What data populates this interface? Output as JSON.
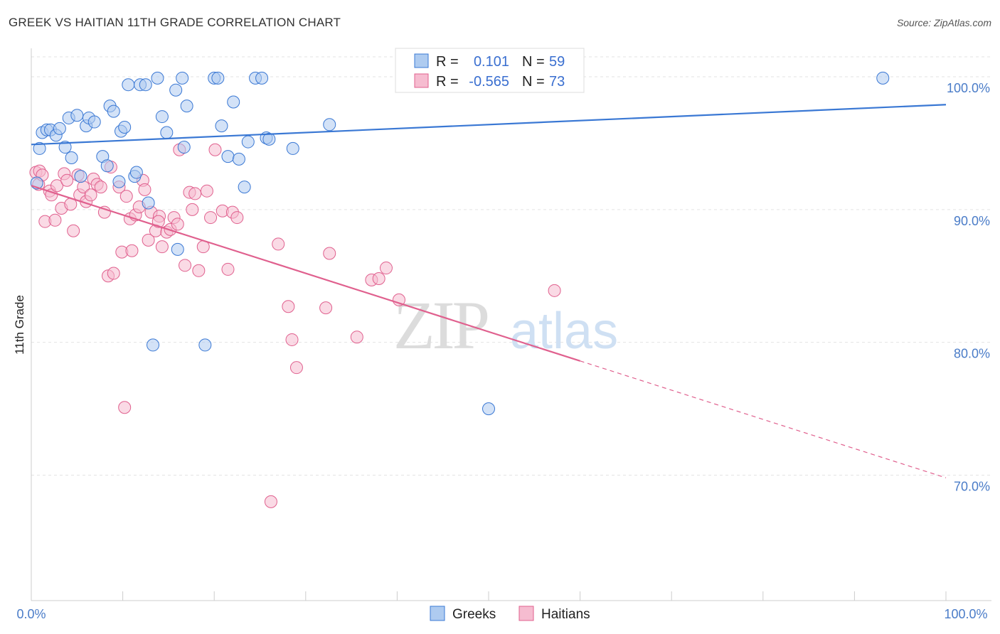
{
  "header": {
    "title": "GREEK VS HAITIAN 11TH GRADE CORRELATION CHART",
    "source": "Source: ZipAtlas.com"
  },
  "watermark": {
    "zip": "ZIP",
    "atlas": "atlas"
  },
  "colors": {
    "greek": "#3a78d4",
    "greek_fill": "#aecbf0",
    "haitian": "#e0608e",
    "haitian_fill": "#f6bcd0",
    "tick_label": "#4a7cc8"
  },
  "legend": {
    "r_label": "R =",
    "n_label": "N =",
    "greek_r": "0.101",
    "greek_n": "59",
    "haitian_r": "-0.565",
    "haitian_n": "73"
  },
  "bottom_legend": {
    "greeks": "Greeks",
    "haitians": "Haitians"
  },
  "chart_data": {
    "type": "scatter",
    "title": "GREEK VS HAITIAN 11TH GRADE CORRELATION CHART",
    "ylabel": "11th Grade",
    "xlabel": "",
    "xlim": [
      0,
      100
    ],
    "ylim": [
      60.5,
      101.5
    ],
    "x_tick_labels": [
      "0.0%",
      "100.0%"
    ],
    "y_ticks": [
      70,
      80,
      90,
      100
    ],
    "y_tick_labels": [
      "70.0%",
      "80.0%",
      "90.0%",
      "100.0%"
    ],
    "grid": true,
    "legend_position": "top-center",
    "series": [
      {
        "name": "Greeks",
        "color": "#3a78d4",
        "r": 0.101,
        "n": 59,
        "trend": {
          "x": [
            0,
            100
          ],
          "y": [
            94.9,
            97.9
          ],
          "dashed_from_x": null
        },
        "points": [
          [
            0.9,
            94.6
          ],
          [
            1.2,
            95.8
          ],
          [
            1.7,
            96.0
          ],
          [
            2.1,
            96.0
          ],
          [
            2.7,
            95.6
          ],
          [
            3.1,
            96.1
          ],
          [
            3.7,
            94.7
          ],
          [
            4.1,
            96.9
          ],
          [
            4.4,
            93.9
          ],
          [
            5.0,
            97.1
          ],
          [
            5.4,
            92.5
          ],
          [
            6.0,
            96.3
          ],
          [
            6.3,
            96.9
          ],
          [
            6.9,
            96.6
          ],
          [
            7.8,
            94.0
          ],
          [
            8.3,
            93.3
          ],
          [
            8.6,
            97.8
          ],
          [
            9.0,
            97.4
          ],
          [
            9.6,
            92.1
          ],
          [
            9.8,
            95.9
          ],
          [
            10.2,
            96.2
          ],
          [
            10.6,
            99.4
          ],
          [
            11.3,
            92.5
          ],
          [
            11.5,
            92.8
          ],
          [
            11.9,
            99.4
          ],
          [
            12.5,
            99.4
          ],
          [
            12.8,
            90.5
          ],
          [
            13.3,
            79.8
          ],
          [
            13.8,
            99.9
          ],
          [
            14.3,
            97.0
          ],
          [
            14.8,
            95.8
          ],
          [
            15.8,
            99.0
          ],
          [
            16.0,
            87.0
          ],
          [
            16.5,
            99.9
          ],
          [
            16.7,
            94.7
          ],
          [
            17.0,
            97.8
          ],
          [
            19.0,
            79.8
          ],
          [
            20.0,
            99.9
          ],
          [
            20.4,
            99.9
          ],
          [
            20.8,
            96.3
          ],
          [
            21.5,
            94.0
          ],
          [
            22.1,
            98.1
          ],
          [
            22.7,
            93.8
          ],
          [
            23.3,
            91.7
          ],
          [
            23.7,
            95.1
          ],
          [
            24.5,
            99.9
          ],
          [
            25.2,
            99.9
          ],
          [
            25.7,
            95.4
          ],
          [
            26.0,
            95.3
          ],
          [
            28.6,
            94.6
          ],
          [
            32.6,
            96.4
          ],
          [
            40.5,
            99.9
          ],
          [
            41.0,
            99.9
          ],
          [
            43.7,
            99.9
          ],
          [
            50.0,
            75.0
          ],
          [
            52.0,
            99.9
          ],
          [
            56.5,
            99.9
          ],
          [
            93.1,
            99.9
          ],
          [
            0.6,
            92.0
          ]
        ]
      },
      {
        "name": "Haitians",
        "color": "#e0608e",
        "r": -0.565,
        "n": 73,
        "trend": {
          "x": [
            0,
            100
          ],
          "y": [
            91.8,
            69.8
          ],
          "dashed_from_x": 60
        },
        "points": [
          [
            0.5,
            92.8
          ],
          [
            0.8,
            91.9
          ],
          [
            0.9,
            92.9
          ],
          [
            1.2,
            92.6
          ],
          [
            1.5,
            89.1
          ],
          [
            2.0,
            91.4
          ],
          [
            2.2,
            91.1
          ],
          [
            2.6,
            89.2
          ],
          [
            2.8,
            91.8
          ],
          [
            3.3,
            90.1
          ],
          [
            3.6,
            92.7
          ],
          [
            3.9,
            92.2
          ],
          [
            4.3,
            90.4
          ],
          [
            4.6,
            88.4
          ],
          [
            5.1,
            92.6
          ],
          [
            5.3,
            91.1
          ],
          [
            5.7,
            91.7
          ],
          [
            6.0,
            90.6
          ],
          [
            6.5,
            91.1
          ],
          [
            6.8,
            92.3
          ],
          [
            7.2,
            91.9
          ],
          [
            7.6,
            91.7
          ],
          [
            8.0,
            89.8
          ],
          [
            8.4,
            85.0
          ],
          [
            8.7,
            93.2
          ],
          [
            9.0,
            85.2
          ],
          [
            9.6,
            91.7
          ],
          [
            9.9,
            86.8
          ],
          [
            10.2,
            75.1
          ],
          [
            10.4,
            91.0
          ],
          [
            10.8,
            89.3
          ],
          [
            11.0,
            86.9
          ],
          [
            11.4,
            89.6
          ],
          [
            11.8,
            90.2
          ],
          [
            12.2,
            92.2
          ],
          [
            12.4,
            91.5
          ],
          [
            12.8,
            87.7
          ],
          [
            13.1,
            89.8
          ],
          [
            13.6,
            88.4
          ],
          [
            14.0,
            89.5
          ],
          [
            14.3,
            87.2
          ],
          [
            14.8,
            88.3
          ],
          [
            15.2,
            88.5
          ],
          [
            15.6,
            89.4
          ],
          [
            16.0,
            88.9
          ],
          [
            16.2,
            94.5
          ],
          [
            16.8,
            85.8
          ],
          [
            17.3,
            91.3
          ],
          [
            17.6,
            90.0
          ],
          [
            17.9,
            91.2
          ],
          [
            18.3,
            85.4
          ],
          [
            18.8,
            87.2
          ],
          [
            19.2,
            91.4
          ],
          [
            19.6,
            89.4
          ],
          [
            20.1,
            94.5
          ],
          [
            20.9,
            89.9
          ],
          [
            21.5,
            85.5
          ],
          [
            22.0,
            89.8
          ],
          [
            22.5,
            89.4
          ],
          [
            26.2,
            68.0
          ],
          [
            27.0,
            87.4
          ],
          [
            28.1,
            82.7
          ],
          [
            28.5,
            80.2
          ],
          [
            29.0,
            78.1
          ],
          [
            32.2,
            82.6
          ],
          [
            32.6,
            86.7
          ],
          [
            35.6,
            80.4
          ],
          [
            37.2,
            84.7
          ],
          [
            38.0,
            84.8
          ],
          [
            38.8,
            85.6
          ],
          [
            40.2,
            83.2
          ],
          [
            57.2,
            83.9
          ],
          [
            13.9,
            89.1
          ]
        ]
      }
    ]
  }
}
